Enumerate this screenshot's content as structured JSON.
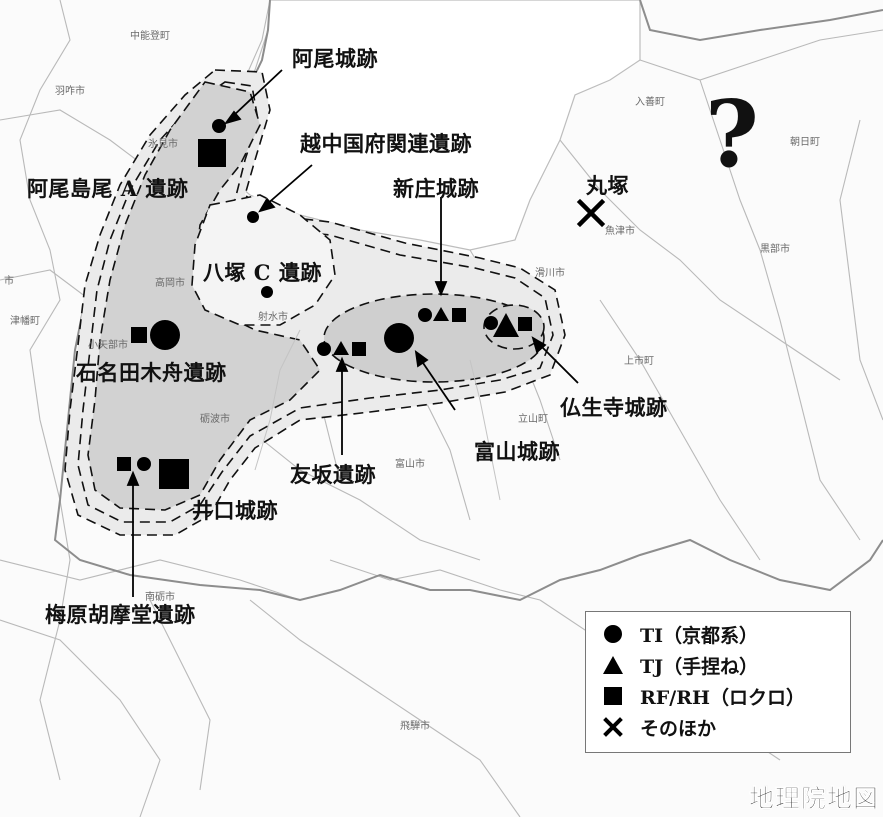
{
  "map": {
    "question_mark": "?",
    "attribution": "地理院地図",
    "cities": [
      {
        "id": "nakanoto",
        "name": "中能登町"
      },
      {
        "id": "hakui",
        "name": "羽咋市"
      },
      {
        "id": "himi",
        "name": "氷見市"
      },
      {
        "id": "takaoka",
        "name": "高岡市"
      },
      {
        "id": "oyabe",
        "name": "小矢部市"
      },
      {
        "id": "tsubata",
        "name": "津幡町"
      },
      {
        "id": "imizu",
        "name": "射水市"
      },
      {
        "id": "tonami",
        "name": "砺波市"
      },
      {
        "id": "toyama",
        "name": "富山市"
      },
      {
        "id": "nanto",
        "name": "南砺市"
      },
      {
        "id": "hida",
        "name": "飛騨市"
      },
      {
        "id": "namerikawa",
        "name": "滑川市"
      },
      {
        "id": "uozu",
        "name": "魚津市"
      },
      {
        "id": "kamiichi",
        "name": "上市町"
      },
      {
        "id": "tateyama",
        "name": "立山町"
      },
      {
        "id": "kurobe",
        "name": "黒部市"
      },
      {
        "id": "nyuzen",
        "name": "入善町"
      },
      {
        "id": "asahi",
        "name": "朝日町"
      },
      {
        "id": "shi",
        "name": "市"
      }
    ],
    "sites": [
      {
        "id": "ao-jo",
        "name": "阿尾城跡"
      },
      {
        "id": "etchu-kokufu",
        "name": "越中国府関連遺跡"
      },
      {
        "id": "ao-shimao",
        "name": "阿尾島尾 A 遺跡"
      },
      {
        "id": "shinjo",
        "name": "新庄城跡"
      },
      {
        "id": "marutsuka",
        "name": "丸塚"
      },
      {
        "id": "yatsuka",
        "name": "八塚 C 遺跡"
      },
      {
        "id": "ishinada",
        "name": "石名田木舟遺跡"
      },
      {
        "id": "busshoji",
        "name": "仏生寺城跡"
      },
      {
        "id": "toyama-jo",
        "name": "富山城跡"
      },
      {
        "id": "tomosaka",
        "name": "友坂遺跡"
      },
      {
        "id": "iguchi",
        "name": "井口城跡"
      },
      {
        "id": "umehara",
        "name": "梅原胡摩堂遺跡"
      }
    ]
  },
  "legend": {
    "items": [
      {
        "symbol": "circle",
        "label": "TI（京都系）"
      },
      {
        "symbol": "triangle",
        "label": "TJ（手捏ね）"
      },
      {
        "symbol": "square",
        "label": "RF/RH（ロクロ）"
      },
      {
        "symbol": "cross",
        "label": "そのほか"
      }
    ]
  },
  "colors": {
    "outer_zone": "#ececec",
    "inner_zone": "#d5d5d5",
    "boundary": "#9a9a9a",
    "marker": "#000000"
  }
}
